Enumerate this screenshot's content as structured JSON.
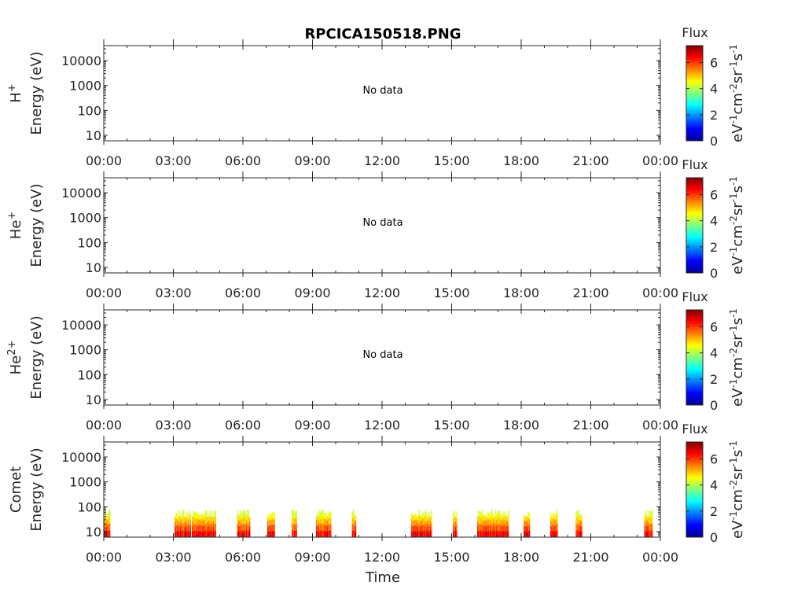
{
  "title": "RPCICA150518.PNG",
  "xlabel": "Time",
  "x_ticks": [
    "00:00",
    "03:00",
    "06:00",
    "09:00",
    "12:00",
    "15:00",
    "18:00",
    "21:00",
    "00:00"
  ],
  "y_ticks": [
    "10",
    "100",
    "1000",
    "10000"
  ],
  "y_tick_values": [
    10,
    100,
    1000,
    10000
  ],
  "colorbar": {
    "title": "Flux",
    "ticks": [
      "0",
      "2",
      "4",
      "6"
    ],
    "tick_values": [
      0,
      2,
      4,
      6
    ],
    "range": [
      0,
      7.3
    ]
  },
  "chart_data": [
    {
      "type": "heatmap",
      "panel": "H+",
      "ylabel_species": "H",
      "ylabel_charge": "+",
      "ylabel_units": "Energy (eV)",
      "cbar_units": "eV-1cm-2sr-1s-1",
      "annotation": "No data",
      "xlim_hours": [
        0,
        24
      ],
      "ylim": [
        6,
        40000
      ],
      "yscale": "log",
      "bursts": []
    },
    {
      "type": "heatmap",
      "panel": "He+",
      "ylabel_species": "He",
      "ylabel_charge": "+",
      "ylabel_units": "Energy (eV)",
      "cbar_units": "eV-1cm-2sr-1s-1",
      "annotation": "No data",
      "xlim_hours": [
        0,
        24
      ],
      "ylim": [
        6,
        40000
      ],
      "yscale": "log",
      "bursts": []
    },
    {
      "type": "heatmap",
      "panel": "He2+",
      "ylabel_species": "He",
      "ylabel_charge": "2+",
      "ylabel_units": "Energy (eV)",
      "cbar_units": "eV-1cm-2sr-1s-1",
      "annotation": "No data",
      "xlim_hours": [
        0,
        24
      ],
      "ylim": [
        6,
        40000
      ],
      "yscale": "log",
      "bursts": []
    },
    {
      "type": "heatmap",
      "panel": "Comet",
      "ylabel_species": "Comet",
      "ylabel_charge": "",
      "ylabel_units": "Energy (eV)",
      "cbar_units": "eV-1cm-2sr-1s-1",
      "annotation": "",
      "xlim_hours": [
        0,
        24
      ],
      "ylim": [
        6,
        40000
      ],
      "yscale": "log",
      "energy_max_eV": 80,
      "bursts": [
        {
          "start": 0.0,
          "end": 0.25
        },
        {
          "start": 3.05,
          "end": 3.75
        },
        {
          "start": 3.8,
          "end": 4.8
        },
        {
          "start": 5.75,
          "end": 6.3
        },
        {
          "start": 7.05,
          "end": 7.35
        },
        {
          "start": 8.1,
          "end": 8.3
        },
        {
          "start": 9.15,
          "end": 9.8
        },
        {
          "start": 10.7,
          "end": 10.85
        },
        {
          "start": 13.25,
          "end": 14.15
        },
        {
          "start": 15.05,
          "end": 15.2
        },
        {
          "start": 16.1,
          "end": 17.45
        },
        {
          "start": 18.1,
          "end": 18.35
        },
        {
          "start": 19.25,
          "end": 19.55
        },
        {
          "start": 20.35,
          "end": 20.6
        },
        {
          "start": 23.3,
          "end": 23.65
        }
      ]
    }
  ]
}
